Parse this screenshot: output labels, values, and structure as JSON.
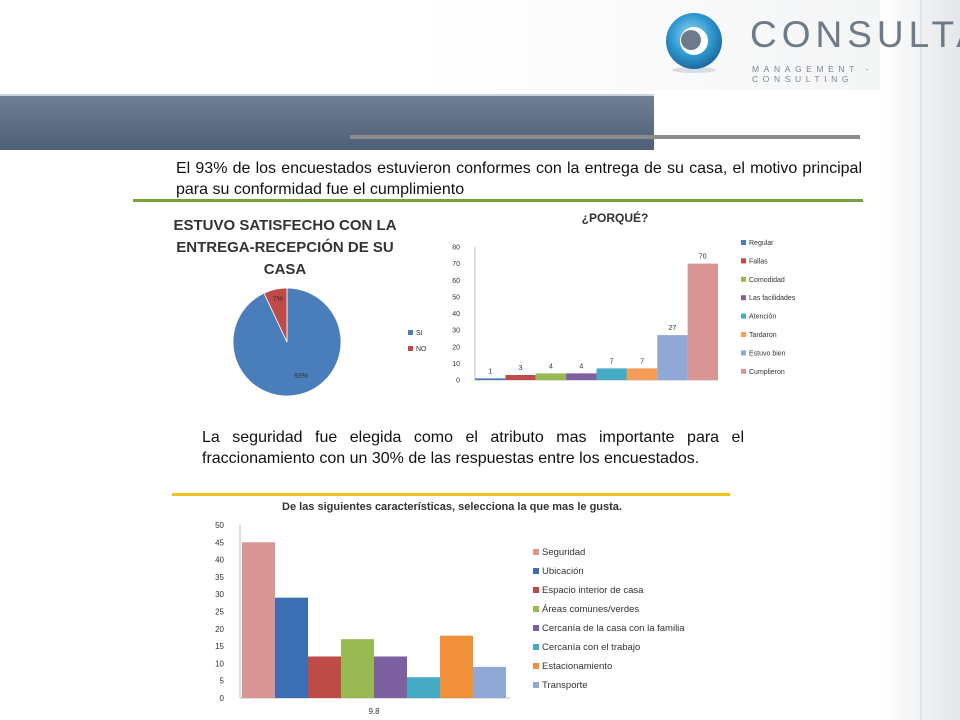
{
  "header": {
    "logo_text": "CONSULTA",
    "logo_subtitle": "MANAGEMENT - CONSULTING"
  },
  "paragraph1": "El 93% de los encuestados estuvieron conformes con la entrega de su casa, el motivo principal para su conformidad fue el cumplimiento",
  "paragraph2": "La seguridad fue elegida como el atributo mas importante para el fraccionamiento con un 30% de las respuestas entre los encuestados.",
  "colors": {
    "banner": "#5a6a80",
    "green_rule": "#7aa03c",
    "yellow_rule": "#f0c419"
  },
  "chart_data": [
    {
      "type": "pie",
      "title": "ESTUVO SATISFECHO CON LA ENTREGA-RECEPCIÓN DE SU CASA",
      "title_lines": [
        "ESTUVO SATISFECHO CON LA",
        "ENTREGA-RECEPCIÓN DE SU",
        "CASA"
      ],
      "labels": [
        "SI",
        "NO"
      ],
      "values": [
        93,
        7
      ],
      "value_labels": [
        "93%",
        "7%"
      ],
      "colors": [
        "#4a7ebb",
        "#be4b48"
      ],
      "legend": "right"
    },
    {
      "type": "bar",
      "title": "¿PORQUÉ?",
      "categories": [
        "Regular",
        "Fallas",
        "Comodidad",
        "Las facilidades",
        "Atención",
        "Tardaron",
        "Estuvo bien",
        "Cumplieron"
      ],
      "values": [
        1,
        3,
        4,
        4,
        7,
        7,
        27,
        70
      ],
      "colors": [
        "#4a7ebb",
        "#be4b48",
        "#98b954",
        "#7d60a0",
        "#46aac5",
        "#f59d56",
        "#8fa8d6",
        "#d99594"
      ],
      "ylim": [
        0,
        80
      ],
      "yticks": [
        0,
        10,
        20,
        30,
        40,
        50,
        60,
        70,
        80
      ],
      "legend": "right"
    },
    {
      "type": "bar",
      "title": "De las siguientes características, selecciona la que mas le gusta.",
      "xlabel": "9.8",
      "categories": [
        "Seguridad",
        "Ubicación",
        "Espacio interior de casa",
        "Áreas comunes/verdes",
        "Cercanía de la casa con la familia",
        "Cercanía con el trabajo",
        "Estacionamiento",
        "Transporte"
      ],
      "values": [
        45,
        29,
        12,
        17,
        12,
        6,
        18,
        9
      ],
      "colors": [
        "#d99594",
        "#3c6eb4",
        "#be4b48",
        "#98b954",
        "#7d60a0",
        "#46aac5",
        "#f0913a",
        "#8fa8d6"
      ],
      "ylim": [
        0,
        50
      ],
      "yticks": [
        0,
        5,
        10,
        15,
        20,
        25,
        30,
        35,
        40,
        45,
        50
      ],
      "legend": "right"
    }
  ]
}
